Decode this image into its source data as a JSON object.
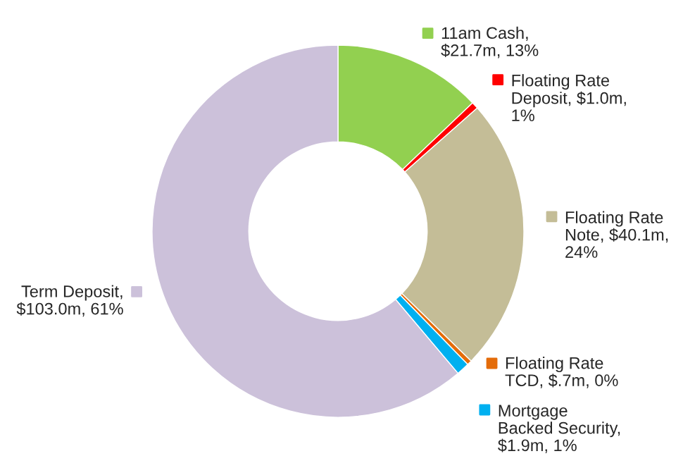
{
  "chart_data": {
    "type": "donut",
    "categories": [
      "11am Cash,\n$21.7m, 13%",
      "Floating Rate\nDeposit, $1.0m,\n1%",
      "Floating Rate\nNote, $40.1m,\n24%",
      "Floating Rate\nTCD, $.7m, 0%",
      "Mortgage\nBacked Security,\n$1.9m, 1%",
      "Term Deposit,\n$103.0m, 61%"
    ],
    "values": [
      21.7,
      1.0,
      40.1,
      0.7,
      1.9,
      103.0
    ],
    "colors": [
      "#92d050",
      "#ff0000",
      "#c4bd97",
      "#e46c0a",
      "#00b0f0",
      "#ccc1da"
    ],
    "legend": "right"
  }
}
